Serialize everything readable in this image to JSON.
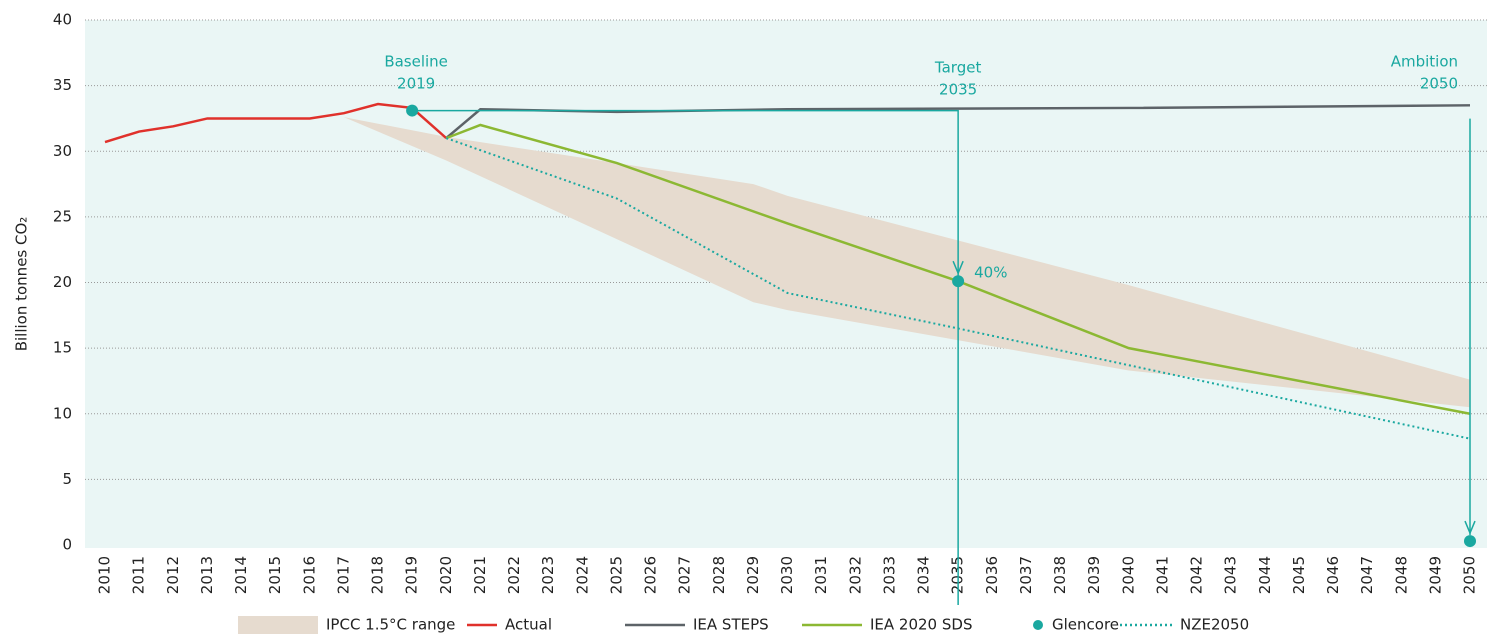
{
  "chart_data": {
    "type": "line",
    "y_label": "Billion tonnes CO₂",
    "xlim": [
      2009.4,
      2050.6
    ],
    "xticks": [
      2010,
      2011,
      2012,
      2013,
      2014,
      2015,
      2016,
      2017,
      2018,
      2019,
      2020,
      2021,
      2022,
      2023,
      2024,
      2025,
      2026,
      2027,
      2028,
      2029,
      2030,
      2031,
      2032,
      2033,
      2034,
      2035,
      2036,
      2037,
      2038,
      2039,
      2040,
      2041,
      2042,
      2043,
      2044,
      2045,
      2046,
      2047,
      2048,
      2049,
      2050
    ],
    "ylim": [
      0,
      40
    ],
    "yticks": [
      0,
      5,
      10,
      15,
      20,
      25,
      30,
      35,
      40
    ],
    "grid": true,
    "legend": "bottom",
    "series": [
      {
        "name": "IPCC 1.5°C range",
        "kind": "band",
        "color": "#e6dbcf",
        "x": [
          2017,
          2020,
          2029,
          2030,
          2040,
          2050
        ],
        "lower": [
          32.6,
          29.3,
          18.5,
          17.9,
          13.3,
          10.5
        ],
        "upper": [
          32.6,
          31.1,
          27.5,
          26.6,
          19.8,
          12.6
        ]
      },
      {
        "name": "Actual",
        "kind": "line",
        "color": "#e0312b",
        "x": [
          2010,
          2011,
          2012,
          2013,
          2014,
          2015,
          2016,
          2017,
          2018,
          2019,
          2020
        ],
        "values": [
          30.7,
          31.5,
          31.9,
          32.5,
          32.5,
          32.5,
          32.5,
          32.9,
          33.6,
          33.3,
          31.0
        ]
      },
      {
        "name": "IEA STEPS",
        "kind": "line",
        "color": "#5d6368",
        "x": [
          2020,
          2021,
          2025,
          2030,
          2040,
          2050
        ],
        "values": [
          31.0,
          33.2,
          33.0,
          33.2,
          33.3,
          33.5
        ]
      },
      {
        "name": "IEA 2020 SDS",
        "kind": "line",
        "color": "#8cb833",
        "x": [
          2020,
          2021,
          2025,
          2030,
          2035,
          2040,
          2050
        ],
        "values": [
          31.0,
          32.0,
          29.1,
          24.5,
          20.1,
          15.0,
          10.0
        ]
      },
      {
        "name": "Glencore",
        "kind": "points",
        "color": "#1aa8a0",
        "x": [
          2019,
          2035,
          2050
        ],
        "values": [
          33.1,
          20.1,
          0.3
        ],
        "value_labels": [
          null,
          "40%",
          null
        ]
      },
      {
        "name": "NZE2050",
        "kind": "line",
        "style": "dotted",
        "color": "#1aa8a0",
        "x": [
          2020,
          2025,
          2030,
          2035,
          2040,
          2050
        ],
        "values": [
          31.0,
          26.4,
          19.2,
          16.5,
          13.7,
          8.1
        ]
      }
    ],
    "annotations": [
      {
        "lines": [
          "Baseline",
          "2019"
        ]
      },
      {
        "lines": [
          "Target",
          "2035"
        ]
      },
      {
        "lines": [
          "Ambition",
          "2050"
        ]
      }
    ]
  }
}
